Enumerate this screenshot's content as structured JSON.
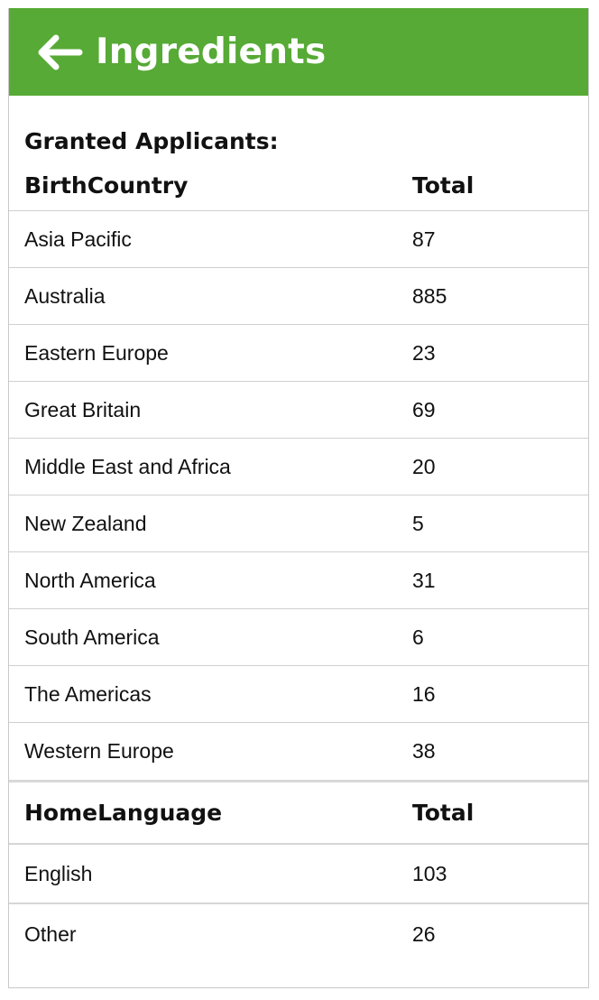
{
  "header": {
    "title": "Ingredients",
    "back_icon": "arrow-left-icon",
    "color": "#56aa35"
  },
  "subtitle": "Granted Applicants:",
  "birth_country": {
    "header_label": "BirthCountry",
    "total_label": "Total",
    "rows": [
      {
        "name": "Asia Pacific",
        "total": "87"
      },
      {
        "name": "Australia",
        "total": "885"
      },
      {
        "name": "Eastern Europe",
        "total": "23"
      },
      {
        "name": "Great Britain",
        "total": "69"
      },
      {
        "name": "Middle East and Africa",
        "total": "20"
      },
      {
        "name": "New Zealand",
        "total": "5"
      },
      {
        "name": "North America",
        "total": "31"
      },
      {
        "name": "South America",
        "total": "6"
      },
      {
        "name": "The Americas",
        "total": "16"
      },
      {
        "name": "Western Europe",
        "total": "38"
      }
    ]
  },
  "home_language": {
    "header_label": "HomeLanguage",
    "total_label": "Total",
    "rows": [
      {
        "name": "English",
        "total": "103"
      },
      {
        "name": "Other",
        "total": "26"
      }
    ]
  }
}
